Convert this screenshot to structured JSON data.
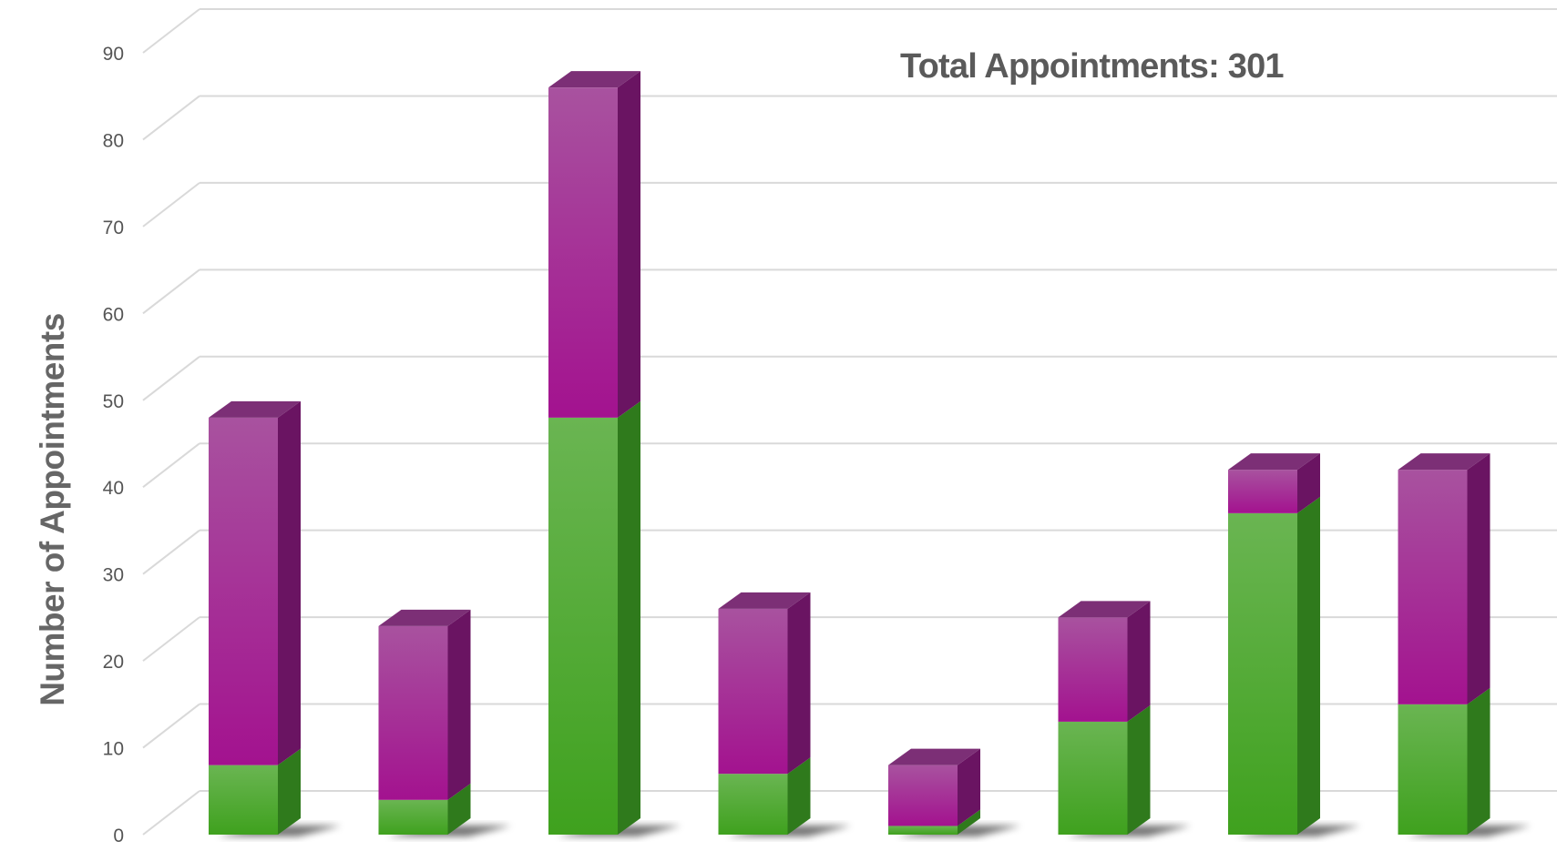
{
  "chart_data": {
    "type": "bar",
    "stacked": true,
    "three_d": true,
    "annotation": "Total Appointments: 301",
    "ylabel": "Number of Appointments",
    "ylim": [
      0,
      90
    ],
    "yticks": [
      0,
      10,
      20,
      30,
      40,
      50,
      60,
      70,
      80,
      90
    ],
    "grid": true,
    "series": [
      {
        "color": "#4aa832",
        "values": [
          8,
          4,
          48,
          7,
          1,
          13,
          37,
          15
        ]
      },
      {
        "color": "#a21f96",
        "values": [
          40,
          20,
          38,
          19,
          7,
          12,
          5,
          27
        ]
      }
    ]
  }
}
